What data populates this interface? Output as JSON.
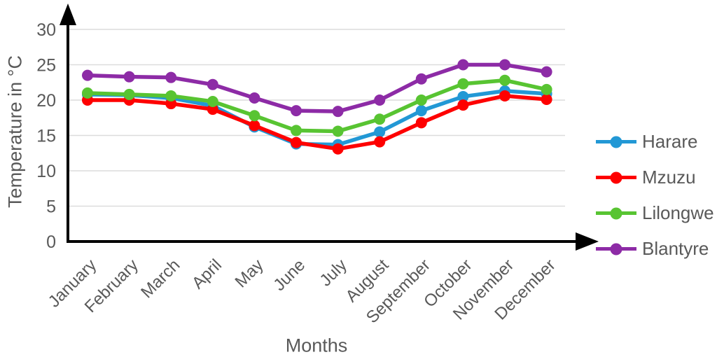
{
  "chart_data": {
    "type": "line",
    "title": "",
    "xlabel": "Months",
    "ylabel": "Temperature in °C",
    "categories": [
      "January",
      "February",
      "March",
      "April",
      "May",
      "June",
      "July",
      "August",
      "September",
      "October",
      "November",
      "December"
    ],
    "series": [
      {
        "name": "Harare",
        "color": "#2298D5",
        "values": [
          20.8,
          20.7,
          20.3,
          19.2,
          16.2,
          13.8,
          13.7,
          15.5,
          18.5,
          20.5,
          21.3,
          20.9
        ]
      },
      {
        "name": "Mzuzu",
        "color": "#FE0000",
        "values": [
          20.0,
          20.0,
          19.5,
          18.7,
          16.4,
          14.0,
          13.1,
          14.1,
          16.8,
          19.3,
          20.6,
          20.1
        ]
      },
      {
        "name": "Lilongwe",
        "color": "#58C432",
        "values": [
          21.0,
          20.8,
          20.6,
          19.8,
          17.8,
          15.7,
          15.6,
          17.3,
          20.0,
          22.3,
          22.8,
          21.5
        ]
      },
      {
        "name": "Blantyre",
        "color": "#8D2BA6",
        "values": [
          23.5,
          23.3,
          23.2,
          22.2,
          20.3,
          18.5,
          18.4,
          20.0,
          23.0,
          25.0,
          25.0,
          24.0
        ]
      }
    ],
    "ylim": [
      0,
      32
    ],
    "yticks": [
      0,
      5,
      10,
      15,
      20,
      25,
      30
    ],
    "grid": true,
    "legend_position": "right",
    "marker": "circle"
  },
  "colors": {
    "axis": "#000000",
    "grid": "#DCDCDC",
    "text": "#595959",
    "background": "#FFFFFF"
  }
}
